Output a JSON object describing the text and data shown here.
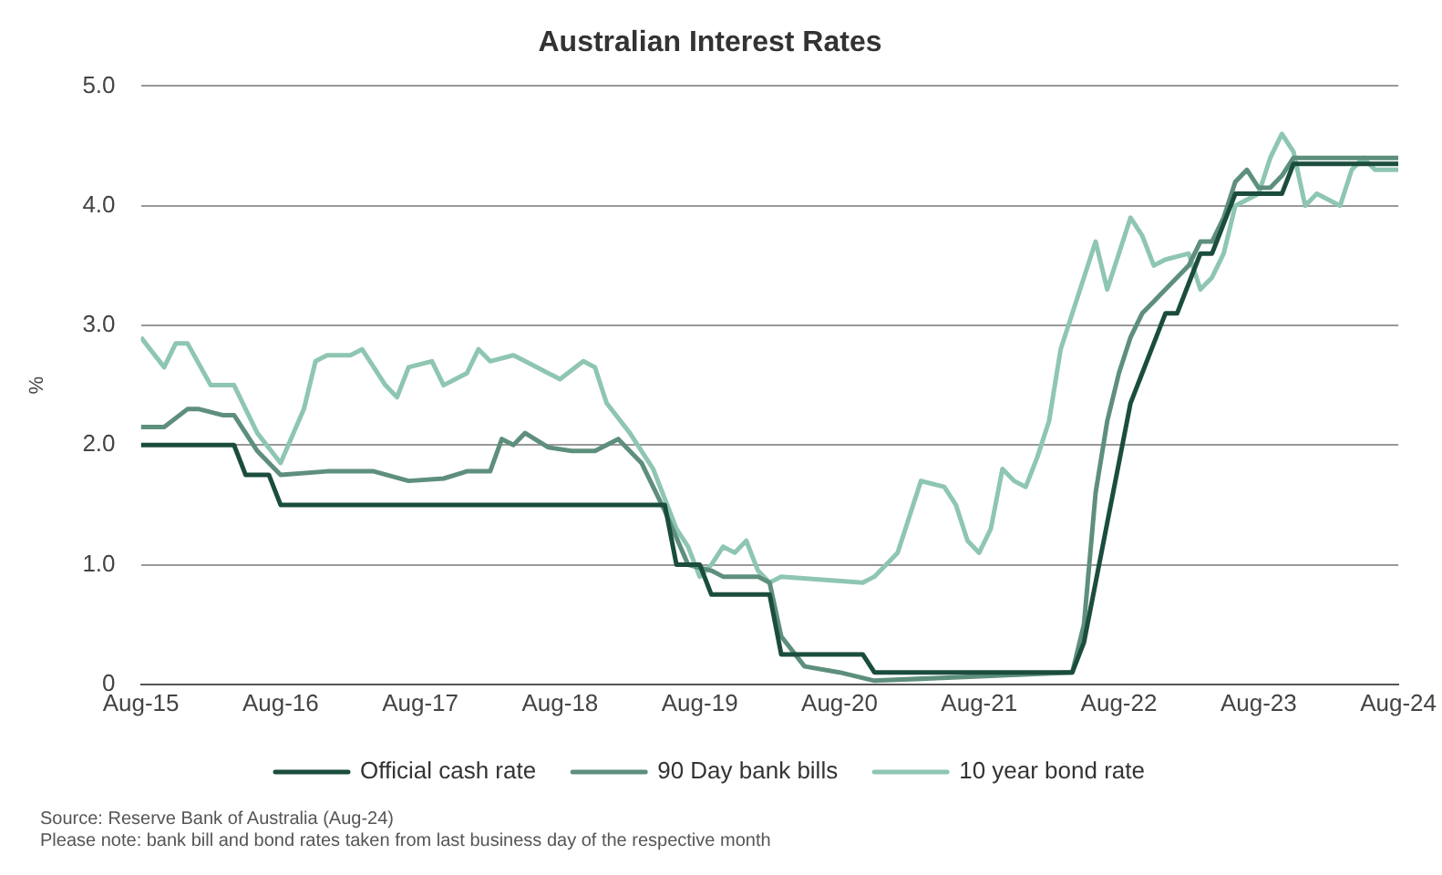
{
  "chart_data": {
    "type": "line",
    "title": "Australian Interest Rates",
    "ylabel": "%",
    "xlim": [
      "2015-08",
      "2024-08"
    ],
    "xticks": [
      {
        "value": "2015-08",
        "label": "Aug-15"
      },
      {
        "value": "2016-08",
        "label": "Aug-16"
      },
      {
        "value": "2017-08",
        "label": "Aug-17"
      },
      {
        "value": "2018-08",
        "label": "Aug-18"
      },
      {
        "value": "2019-08",
        "label": "Aug-19"
      },
      {
        "value": "2020-08",
        "label": "Aug-20"
      },
      {
        "value": "2021-08",
        "label": "Aug-21"
      },
      {
        "value": "2022-08",
        "label": "Aug-22"
      },
      {
        "value": "2023-08",
        "label": "Aug-23"
      },
      {
        "value": "2024-08",
        "label": "Aug-24"
      }
    ],
    "ylim": [
      0,
      5
    ],
    "yticks": [
      0,
      {
        "value": 1,
        "label": "1.0"
      },
      {
        "value": 2,
        "label": "2.0"
      },
      {
        "value": 3,
        "label": "3.0"
      },
      {
        "value": 4,
        "label": "4.0"
      },
      {
        "value": 5,
        "label": "5.0"
      }
    ],
    "grid": "y",
    "legend": "bottom",
    "marker": "none",
    "line_style": "solid",
    "series": [
      {
        "name": "Official cash rate",
        "color": "#1b4d3e",
        "x": [
          "2015-08",
          "2016-04",
          "2016-05",
          "2016-07",
          "2016-08",
          "2019-05",
          "2019-06",
          "2019-08",
          "2019-09",
          "2019-12",
          "2020-01",
          "2020-02",
          "2020-03",
          "2020-10",
          "2020-11",
          "2022-04",
          "2022-05",
          "2022-06",
          "2022-07",
          "2022-08",
          "2022-09",
          "2022-10",
          "2022-11",
          "2022-12",
          "2023-01",
          "2023-02",
          "2023-03",
          "2023-04",
          "2023-05",
          "2023-06",
          "2023-10",
          "2023-11",
          "2024-08"
        ],
        "values": [
          2.0,
          2.0,
          1.75,
          1.75,
          1.5,
          1.5,
          1.0,
          1.0,
          0.75,
          0.75,
          0.75,
          0.75,
          0.25,
          0.25,
          0.1,
          0.1,
          0.35,
          0.85,
          1.35,
          1.85,
          2.35,
          2.6,
          2.85,
          3.1,
          3.1,
          3.35,
          3.6,
          3.6,
          3.85,
          4.1,
          4.1,
          4.35,
          4.35
        ]
      },
      {
        "name": "90 Day bank bills",
        "color": "#5e8f7c",
        "x": [
          "2015-08",
          "2015-10",
          "2015-12",
          "2016-01",
          "2016-03",
          "2016-04",
          "2016-06",
          "2016-08",
          "2016-12",
          "2017-04",
          "2017-07",
          "2017-10",
          "2017-12",
          "2018-02",
          "2018-03",
          "2018-04",
          "2018-05",
          "2018-07",
          "2018-09",
          "2018-11",
          "2019-01",
          "2019-03",
          "2019-05",
          "2019-07",
          "2019-09",
          "2019-10",
          "2020-01",
          "2020-02",
          "2020-03",
          "2020-05",
          "2020-08",
          "2020-11",
          "2022-04",
          "2022-05",
          "2022-06",
          "2022-07",
          "2022-08",
          "2022-09",
          "2022-10",
          "2022-11",
          "2022-12",
          "2023-02",
          "2023-03",
          "2023-04",
          "2023-05",
          "2023-06",
          "2023-07",
          "2023-08",
          "2023-09",
          "2023-10",
          "2023-11",
          "2024-08"
        ],
        "values": [
          2.15,
          2.15,
          2.3,
          2.3,
          2.25,
          2.25,
          1.95,
          1.75,
          1.78,
          1.78,
          1.7,
          1.72,
          1.78,
          1.78,
          2.05,
          2.0,
          2.1,
          1.98,
          1.95,
          1.95,
          2.05,
          1.85,
          1.45,
          1.0,
          0.95,
          0.9,
          0.9,
          0.85,
          0.4,
          0.15,
          0.1,
          0.03,
          0.1,
          0.5,
          1.6,
          2.2,
          2.6,
          2.9,
          3.1,
          3.2,
          3.3,
          3.5,
          3.7,
          3.7,
          3.9,
          4.2,
          4.3,
          4.15,
          4.15,
          4.25,
          4.4,
          4.4
        ]
      },
      {
        "name": "10 year bond rate",
        "color": "#8ec6b1",
        "x": [
          "2015-08",
          "2015-10",
          "2015-11",
          "2015-12",
          "2016-02",
          "2016-04",
          "2016-06",
          "2016-08",
          "2016-10",
          "2016-11",
          "2016-12",
          "2017-02",
          "2017-03",
          "2017-05",
          "2017-06",
          "2017-07",
          "2017-09",
          "2017-10",
          "2017-12",
          "2018-01",
          "2018-02",
          "2018-04",
          "2018-05",
          "2018-07",
          "2018-08",
          "2018-10",
          "2018-11",
          "2018-12",
          "2019-02",
          "2019-04",
          "2019-06",
          "2019-07",
          "2019-08",
          "2019-09",
          "2019-10",
          "2019-11",
          "2019-12",
          "2020-01",
          "2020-02",
          "2020-03",
          "2020-10",
          "2020-11",
          "2021-01",
          "2021-02",
          "2021-03",
          "2021-05",
          "2021-06",
          "2021-07",
          "2021-08",
          "2021-09",
          "2021-10",
          "2021-11",
          "2021-12",
          "2022-01",
          "2022-02",
          "2022-03",
          "2022-04",
          "2022-05",
          "2022-06",
          "2022-07",
          "2022-08",
          "2022-09",
          "2022-10",
          "2022-11",
          "2022-12",
          "2023-02",
          "2023-03",
          "2023-04",
          "2023-05",
          "2023-06",
          "2023-08",
          "2023-09",
          "2023-10",
          "2023-11",
          "2023-12",
          "2024-01",
          "2024-03",
          "2024-04",
          "2024-05",
          "2024-06",
          "2024-08"
        ],
        "values": [
          2.9,
          2.65,
          2.85,
          2.85,
          2.5,
          2.5,
          2.1,
          1.85,
          2.3,
          2.7,
          2.75,
          2.75,
          2.8,
          2.5,
          2.4,
          2.65,
          2.7,
          2.5,
          2.6,
          2.8,
          2.7,
          2.75,
          2.7,
          2.6,
          2.55,
          2.7,
          2.65,
          2.35,
          2.1,
          1.8,
          1.3,
          1.15,
          0.9,
          1.0,
          1.15,
          1.1,
          1.2,
          0.95,
          0.85,
          0.9,
          0.85,
          0.9,
          1.1,
          1.4,
          1.7,
          1.65,
          1.5,
          1.2,
          1.1,
          1.3,
          1.8,
          1.7,
          1.65,
          1.9,
          2.2,
          2.8,
          3.1,
          3.4,
          3.7,
          3.3,
          3.6,
          3.9,
          3.75,
          3.5,
          3.55,
          3.6,
          3.3,
          3.4,
          3.6,
          4.0,
          4.1,
          4.4,
          4.6,
          4.45,
          4.0,
          4.1,
          4.0,
          4.3,
          4.4,
          4.3,
          4.3
        ]
      }
    ],
    "annotations": [
      "Source: Reserve Bank of Australia (Aug-24)",
      "Please note: bank bill and bond rates taken from last business day of the respective month"
    ]
  }
}
